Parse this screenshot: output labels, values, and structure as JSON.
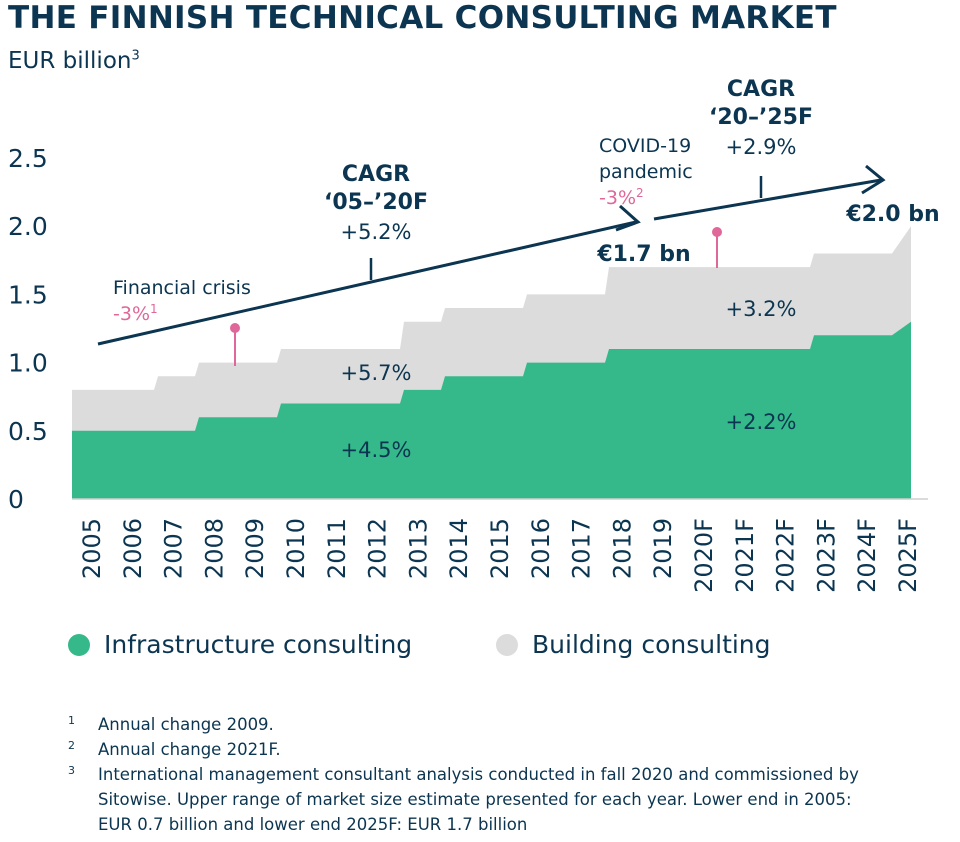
{
  "title": "THE FINNISH TECHNICAL CONSULTING MARKET",
  "unit_label": "EUR billion",
  "unit_footnote": "3",
  "colors": {
    "infrastructure": "#36b98a",
    "building": "#dcdcdc",
    "navy": "#0b3550",
    "pink": "#e0679a"
  },
  "chart_data": {
    "type": "area",
    "stacked": true,
    "categories": [
      "2005",
      "2006",
      "2007",
      "2008",
      "2009",
      "2010",
      "2011",
      "2012",
      "2013",
      "2014",
      "2015",
      "2016",
      "2017",
      "2018",
      "2019",
      "2020F",
      "2021F",
      "2022F",
      "2023F",
      "2024F",
      "2025F"
    ],
    "series": [
      {
        "name": "Infrastructure consulting",
        "values": [
          0.5,
          0.5,
          0.5,
          0.6,
          0.6,
          0.7,
          0.7,
          0.7,
          0.8,
          0.9,
          0.9,
          1.0,
          1.0,
          1.1,
          1.1,
          1.1,
          1.1,
          1.1,
          1.2,
          1.2,
          1.3
        ]
      },
      {
        "name": "Building consulting",
        "values": [
          0.3,
          0.3,
          0.4,
          0.4,
          0.4,
          0.4,
          0.4,
          0.4,
          0.5,
          0.5,
          0.5,
          0.5,
          0.5,
          0.6,
          0.6,
          0.6,
          0.6,
          0.6,
          0.6,
          0.6,
          0.7
        ]
      }
    ],
    "yticks": [
      "0",
      "0.5",
      "1.0",
      "1.5",
      "2.0",
      "2.5"
    ],
    "ylim": [
      0,
      2.5
    ],
    "annotations": {
      "financial_crisis": {
        "label": "Financial crisis",
        "change": "-3%",
        "footnote": "1",
        "year": "2009"
      },
      "covid": {
        "line1": "COVID-19",
        "line2": "pandemic",
        "change": "-3%",
        "footnote": "2",
        "year": "2021F"
      },
      "cagr1": {
        "line1": "CAGR",
        "line2": "‘05–’20F",
        "value": "+5.2%"
      },
      "cagr2": {
        "line1": "CAGR",
        "line2": "‘20–’25F",
        "value": "+2.9%"
      },
      "total_2019": "€1.7 bn",
      "total_2025": "€2.0 bn",
      "building_growth_1": "+5.7%",
      "infra_growth_1": "+4.5%",
      "building_growth_2": "+3.2%",
      "infra_growth_2": "+2.2%"
    }
  },
  "footnotes": [
    {
      "num": "1",
      "text": "Annual change 2009."
    },
    {
      "num": "2",
      "text": "Annual change 2021F."
    },
    {
      "num": "3",
      "text": "International management consultant analysis conducted in fall 2020 and commissioned by Sitowise. Upper range of market size estimate presented for each year. Lower end in 2005: EUR 0.7 billion and lower end 2025F: EUR 1.7 billion"
    }
  ]
}
